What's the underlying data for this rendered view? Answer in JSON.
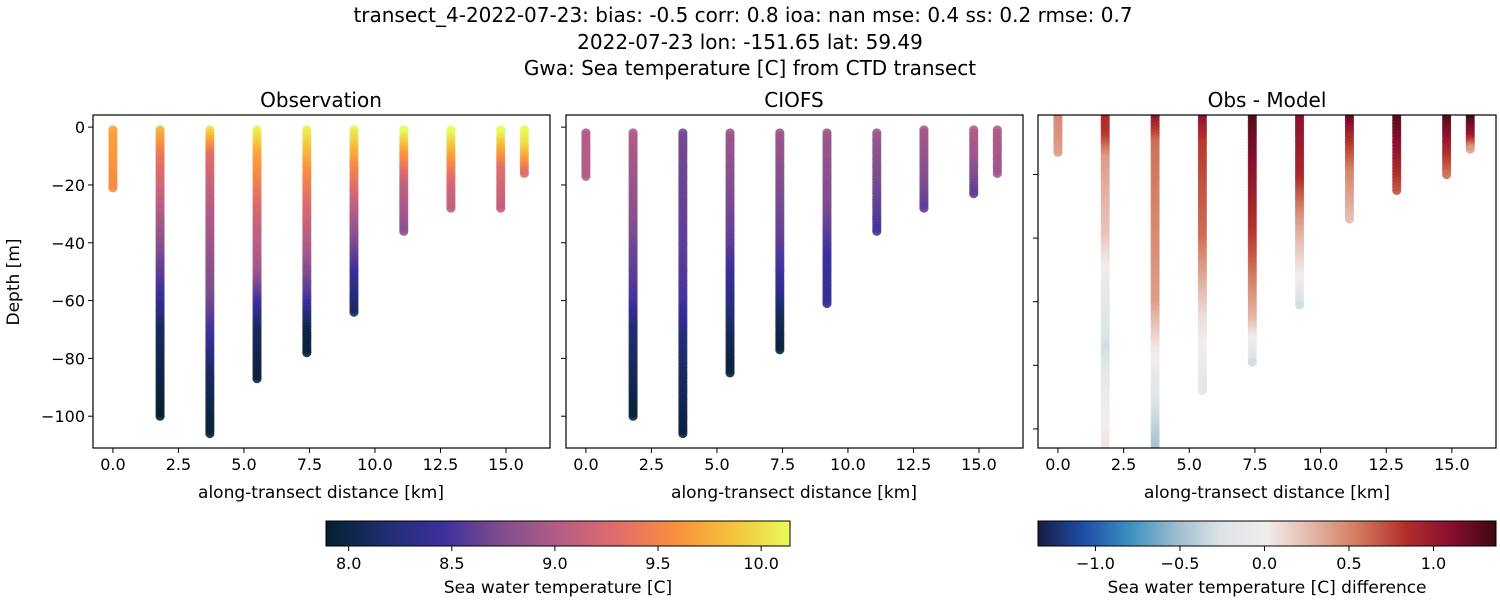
{
  "title_lines": [
    "transect_4-2022-07-23: bias: -0.5  corr: 0.8  ioa: nan  mse: 0.4  ss: 0.2  rmse: 0.7",
    "2022-07-23 lon: -151.65 lat: 59.49",
    "Gwa: Sea temperature [C] from CTD transect"
  ],
  "chart_data": [
    {
      "type": "scatter",
      "title": "Observation",
      "xlabel": "along-transect distance [km]",
      "ylabel": "Depth [m]",
      "xlim": [
        -0.76,
        16.68
      ],
      "ylim": [
        -111,
        4.2
      ],
      "xticks": [
        "0.0",
        "2.5",
        "5.0",
        "7.5",
        "10.0",
        "12.5",
        "15.0"
      ],
      "yticks": [
        "0",
        "−20",
        "−40",
        "−60",
        "−80",
        "−100"
      ],
      "colormap": "thermal",
      "casts": [
        {
          "x": 0.0,
          "profile": [
            [
              -1,
              9.7
            ],
            [
              -21,
              9.55
            ]
          ]
        },
        {
          "x": 1.8,
          "profile": [
            [
              -1,
              9.8
            ],
            [
              -10,
              9.4
            ],
            [
              -30,
              9.0
            ],
            [
              -50,
              8.6
            ],
            [
              -60,
              8.4
            ],
            [
              -70,
              8.1
            ],
            [
              -100,
              7.9
            ]
          ]
        },
        {
          "x": 3.7,
          "profile": [
            [
              -1,
              10.0
            ],
            [
              -10,
              9.3
            ],
            [
              -30,
              9.0
            ],
            [
              -60,
              8.7
            ],
            [
              -75,
              8.4
            ],
            [
              -85,
              8.1
            ],
            [
              -106,
              7.95
            ]
          ]
        },
        {
          "x": 5.5,
          "profile": [
            [
              -1,
              10.1
            ],
            [
              -10,
              9.7
            ],
            [
              -30,
              9.2
            ],
            [
              -50,
              8.9
            ],
            [
              -60,
              8.5
            ],
            [
              -70,
              8.1
            ],
            [
              -87,
              7.95
            ]
          ]
        },
        {
          "x": 7.4,
          "profile": [
            [
              -1,
              10.1
            ],
            [
              -15,
              9.6
            ],
            [
              -30,
              9.2
            ],
            [
              -45,
              8.9
            ],
            [
              -60,
              8.5
            ],
            [
              -70,
              8.0
            ],
            [
              -78,
              7.95
            ]
          ]
        },
        {
          "x": 9.2,
          "profile": [
            [
              -1,
              10.1
            ],
            [
              -15,
              9.5
            ],
            [
              -30,
              9.0
            ],
            [
              -45,
              8.6
            ],
            [
              -52,
              8.4
            ],
            [
              -64,
              8.1
            ]
          ]
        },
        {
          "x": 11.1,
          "profile": [
            [
              -1,
              10.2
            ],
            [
              -10,
              9.6
            ],
            [
              -20,
              9.1
            ],
            [
              -36,
              8.8
            ]
          ]
        },
        {
          "x": 12.9,
          "profile": [
            [
              -1,
              10.2
            ],
            [
              -10,
              9.7
            ],
            [
              -20,
              9.2
            ],
            [
              -28,
              9.1
            ]
          ]
        },
        {
          "x": 14.8,
          "profile": [
            [
              -1,
              10.2
            ],
            [
              -10,
              9.6
            ],
            [
              -15,
              9.3
            ],
            [
              -28,
              9.1
            ]
          ]
        },
        {
          "x": 15.7,
          "profile": [
            [
              -1,
              10.2
            ],
            [
              -8,
              9.9
            ],
            [
              -16,
              9.3
            ]
          ]
        }
      ]
    },
    {
      "type": "scatter",
      "title": "CIOFS",
      "xlabel": "along-transect distance [km]",
      "xlim": [
        -0.76,
        16.68
      ],
      "ylim": [
        -111,
        4.2
      ],
      "xticks": [
        "0.0",
        "2.5",
        "5.0",
        "7.5",
        "10.0",
        "12.5",
        "15.0"
      ],
      "colormap": "thermal",
      "casts": [
        {
          "x": 0.0,
          "profile": [
            [
              -2,
              9.0
            ],
            [
              -17,
              9.0
            ]
          ]
        },
        {
          "x": 1.8,
          "profile": [
            [
              -2,
              9.0
            ],
            [
              -30,
              8.8
            ],
            [
              -60,
              8.5
            ],
            [
              -70,
              8.2
            ],
            [
              -100,
              7.95
            ]
          ]
        },
        {
          "x": 3.7,
          "profile": [
            [
              -2,
              8.7
            ],
            [
              -40,
              8.6
            ],
            [
              -60,
              8.5
            ],
            [
              -75,
              8.2
            ],
            [
              -106,
              7.95
            ]
          ]
        },
        {
          "x": 5.5,
          "profile": [
            [
              -2,
              8.9
            ],
            [
              -40,
              8.6
            ],
            [
              -60,
              8.3
            ],
            [
              -70,
              8.1
            ],
            [
              -85,
              7.95
            ]
          ]
        },
        {
          "x": 7.4,
          "profile": [
            [
              -2,
              8.9
            ],
            [
              -40,
              8.6
            ],
            [
              -55,
              8.4
            ],
            [
              -65,
              8.1
            ],
            [
              -77,
              7.95
            ]
          ]
        },
        {
          "x": 9.2,
          "profile": [
            [
              -2,
              8.9
            ],
            [
              -30,
              8.7
            ],
            [
              -45,
              8.45
            ],
            [
              -61,
              8.4
            ]
          ]
        },
        {
          "x": 11.1,
          "profile": [
            [
              -2,
              8.9
            ],
            [
              -20,
              8.7
            ],
            [
              -36,
              8.5
            ]
          ]
        },
        {
          "x": 12.9,
          "profile": [
            [
              -1,
              8.95
            ],
            [
              -15,
              8.8
            ],
            [
              -28,
              8.6
            ]
          ]
        },
        {
          "x": 14.8,
          "profile": [
            [
              -1,
              9.0
            ],
            [
              -10,
              8.9
            ],
            [
              -23,
              8.6
            ]
          ]
        },
        {
          "x": 15.7,
          "profile": [
            [
              -1,
              9.0
            ],
            [
              -16,
              8.9
            ]
          ]
        }
      ]
    },
    {
      "type": "scatter",
      "title": "Obs - Model",
      "xlabel": "along-transect distance [km]",
      "xlim": [
        -0.76,
        16.68
      ],
      "ylim": [
        -106,
        -1.3
      ],
      "xticks": [
        "0.0",
        "2.5",
        "5.0",
        "7.5",
        "10.0",
        "12.5",
        "15.0"
      ],
      "colormap": "balance",
      "casts": [
        {
          "x": 0.0,
          "profile": [
            [
              -1,
              0.5
            ],
            [
              -13,
              0.4
            ]
          ]
        },
        {
          "x": 1.8,
          "profile": [
            [
              -1,
              0.9
            ],
            [
              -8,
              0.8
            ],
            [
              -15,
              0.4
            ],
            [
              -40,
              0.2
            ],
            [
              -55,
              -0.1
            ],
            [
              -75,
              -0.3
            ],
            [
              -90,
              -0.05
            ],
            [
              -105,
              0.05
            ]
          ]
        },
        {
          "x": 3.7,
          "profile": [
            [
              -1,
              1.1
            ],
            [
              -10,
              0.6
            ],
            [
              -60,
              0.4
            ],
            [
              -75,
              0.05
            ],
            [
              -95,
              -0.3
            ],
            [
              -107,
              -0.5
            ]
          ]
        },
        {
          "x": 5.5,
          "profile": [
            [
              -1,
              1.1
            ],
            [
              -10,
              0.8
            ],
            [
              -40,
              0.6
            ],
            [
              -65,
              0.1
            ],
            [
              -88,
              -0.15
            ]
          ]
        },
        {
          "x": 7.4,
          "profile": [
            [
              -1,
              1.3
            ],
            [
              -25,
              1.0
            ],
            [
              -45,
              0.7
            ],
            [
              -65,
              0.3
            ],
            [
              -79,
              -0.3
            ]
          ]
        },
        {
          "x": 9.2,
          "profile": [
            [
              -1,
              1.1
            ],
            [
              -20,
              0.9
            ],
            [
              -35,
              0.4
            ],
            [
              -55,
              -0.05
            ],
            [
              -61,
              -0.3
            ]
          ]
        },
        {
          "x": 11.1,
          "profile": [
            [
              -1,
              1.3
            ],
            [
              -8,
              0.9
            ],
            [
              -20,
              0.5
            ],
            [
              -34,
              0.25
            ]
          ]
        },
        {
          "x": 12.9,
          "profile": [
            [
              -1,
              1.3
            ],
            [
              -15,
              1.0
            ],
            [
              -25,
              0.7
            ]
          ]
        },
        {
          "x": 14.8,
          "profile": [
            [
              -1,
              1.35
            ],
            [
              -10,
              1.0
            ],
            [
              -20,
              0.6
            ]
          ]
        },
        {
          "x": 15.7,
          "profile": [
            [
              -1,
              1.4
            ],
            [
              -8,
              1.0
            ],
            [
              -12,
              0.4
            ]
          ]
        }
      ]
    }
  ],
  "colorbars": [
    {
      "label": "Sea water temperature [C]",
      "range": [
        7.89,
        10.14
      ],
      "ticks": [
        "8.0",
        "8.5",
        "9.0",
        "9.5",
        "10.0"
      ],
      "tick_values": [
        8.0,
        8.5,
        9.0,
        9.5,
        10.0
      ],
      "colormap": "thermal"
    },
    {
      "label": "Sea water temperature [C] difference",
      "range": [
        -1.34,
        1.37
      ],
      "ticks": [
        "−1.0",
        "−0.5",
        "0.0",
        "0.5",
        "1.0"
      ],
      "tick_values": [
        -1.0,
        -0.5,
        0.0,
        0.5,
        1.0
      ],
      "colormap": "balance"
    }
  ],
  "colormaps": {
    "thermal": [
      "#03202f",
      "#1f2d6e",
      "#3b2f9c",
      "#7e4d8f",
      "#b45d85",
      "#e06c6c",
      "#f98e3f",
      "#f6c13b",
      "#e8fa5b"
    ],
    "balance": [
      "#181c43",
      "#1d4ea8",
      "#3b8fc0",
      "#9bbccd",
      "#dde3e6",
      "#f1ecec",
      "#e3b5a6",
      "#d27a5e",
      "#b2302a",
      "#8a0e2e",
      "#3c0912"
    ]
  }
}
